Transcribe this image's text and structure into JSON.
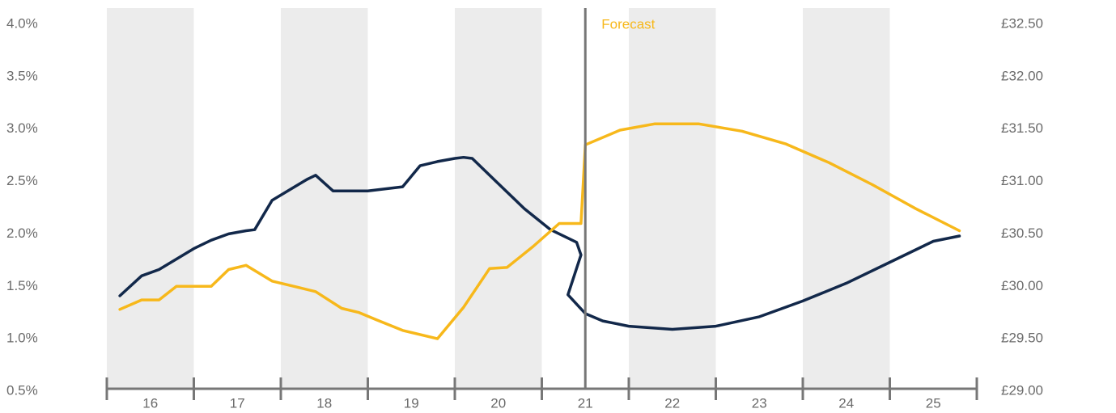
{
  "colors": {
    "navy": "#12284a",
    "gold": "#f7b81b",
    "band": "#ececec",
    "axis": "#777777",
    "text": "#6b6b6b"
  },
  "chart_data": {
    "type": "line",
    "title": "",
    "forecast_label": "Forecast",
    "forecast_start_x": 21.0,
    "x_categories": [
      "16",
      "17",
      "18",
      "19",
      "20",
      "21",
      "22",
      "23",
      "24",
      "25"
    ],
    "xlim": [
      15.5,
      25.5
    ],
    "shaded_bands": [
      [
        15.5,
        16.5
      ],
      [
        17.5,
        18.5
      ],
      [
        19.5,
        20.5
      ],
      [
        21.5,
        22.5
      ],
      [
        23.5,
        24.5
      ]
    ],
    "y_left": {
      "ticks": [
        "4.0%",
        "3.5%",
        "3.0%",
        "2.5%",
        "2.0%",
        "1.5%",
        "1.0%",
        "0.5%"
      ],
      "ylim": [
        0.5,
        4.0
      ]
    },
    "y_right": {
      "ticks": [
        "£32.50",
        "£32.00",
        "£31.50",
        "£31.00",
        "£30.50",
        "£30.00",
        "£29.50",
        "£29.00"
      ],
      "ylim": [
        29.0,
        32.5
      ]
    },
    "series": [
      {
        "axis": "left",
        "color": "navy",
        "points": [
          [
            15.65,
            1.41
          ],
          [
            15.9,
            1.6
          ],
          [
            16.1,
            1.66
          ],
          [
            16.5,
            1.86
          ],
          [
            16.7,
            1.94
          ],
          [
            16.9,
            2.0
          ],
          [
            17.1,
            2.03
          ],
          [
            17.2,
            2.04
          ],
          [
            17.4,
            2.32
          ],
          [
            17.6,
            2.42
          ],
          [
            17.8,
            2.52
          ],
          [
            17.9,
            2.56
          ],
          [
            18.1,
            2.41
          ],
          [
            18.5,
            2.41
          ],
          [
            18.9,
            2.45
          ],
          [
            19.1,
            2.65
          ],
          [
            19.3,
            2.69
          ],
          [
            19.5,
            2.72
          ],
          [
            19.6,
            2.73
          ],
          [
            19.7,
            2.72
          ],
          [
            20.0,
            2.48
          ],
          [
            20.3,
            2.24
          ],
          [
            20.6,
            2.04
          ],
          [
            20.9,
            1.92
          ],
          [
            20.95,
            1.8
          ],
          [
            20.8,
            1.42
          ],
          [
            21.0,
            1.24
          ],
          [
            21.2,
            1.17
          ],
          [
            21.5,
            1.12
          ],
          [
            22.0,
            1.09
          ],
          [
            22.5,
            1.12
          ],
          [
            23.0,
            1.21
          ],
          [
            23.5,
            1.36
          ],
          [
            24.0,
            1.53
          ],
          [
            24.5,
            1.73
          ],
          [
            25.0,
            1.93
          ],
          [
            25.3,
            1.98
          ]
        ]
      },
      {
        "axis": "right",
        "color": "gold",
        "points": [
          [
            15.65,
            29.78
          ],
          [
            15.9,
            29.87
          ],
          [
            16.1,
            29.87
          ],
          [
            16.3,
            30.0
          ],
          [
            16.5,
            30.0
          ],
          [
            16.7,
            30.0
          ],
          [
            16.9,
            30.16
          ],
          [
            17.1,
            30.2
          ],
          [
            17.4,
            30.05
          ],
          [
            17.7,
            29.99
          ],
          [
            17.9,
            29.95
          ],
          [
            18.2,
            29.79
          ],
          [
            18.4,
            29.75
          ],
          [
            18.6,
            29.68
          ],
          [
            18.9,
            29.58
          ],
          [
            19.3,
            29.5
          ],
          [
            19.6,
            29.8
          ],
          [
            19.9,
            30.17
          ],
          [
            20.1,
            30.18
          ],
          [
            20.4,
            30.38
          ],
          [
            20.7,
            30.6
          ],
          [
            20.95,
            30.6
          ],
          [
            21.0,
            31.35
          ],
          [
            21.4,
            31.49
          ],
          [
            21.8,
            31.55
          ],
          [
            22.3,
            31.55
          ],
          [
            22.8,
            31.48
          ],
          [
            23.3,
            31.36
          ],
          [
            23.8,
            31.18
          ],
          [
            24.3,
            30.97
          ],
          [
            24.8,
            30.74
          ],
          [
            25.3,
            30.53
          ]
        ]
      }
    ]
  }
}
